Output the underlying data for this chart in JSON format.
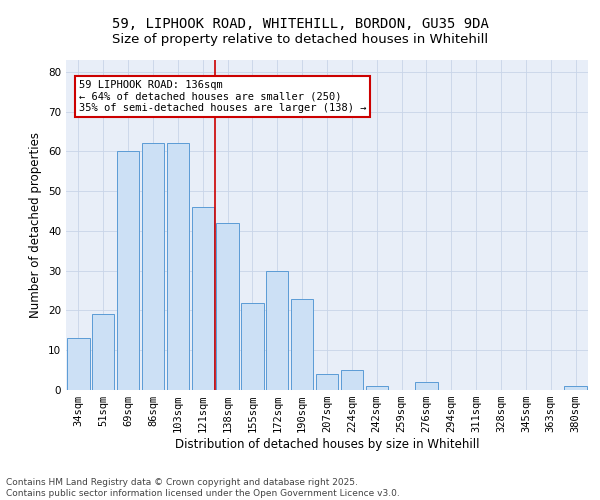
{
  "title_line1": "59, LIPHOOK ROAD, WHITEHILL, BORDON, GU35 9DA",
  "title_line2": "Size of property relative to detached houses in Whitehill",
  "xlabel": "Distribution of detached houses by size in Whitehill",
  "ylabel": "Number of detached properties",
  "categories": [
    "34sqm",
    "51sqm",
    "69sqm",
    "86sqm",
    "103sqm",
    "121sqm",
    "138sqm",
    "155sqm",
    "172sqm",
    "190sqm",
    "207sqm",
    "224sqm",
    "242sqm",
    "259sqm",
    "276sqm",
    "294sqm",
    "311sqm",
    "328sqm",
    "345sqm",
    "363sqm",
    "380sqm"
  ],
  "values": [
    13,
    19,
    60,
    62,
    62,
    46,
    42,
    22,
    30,
    23,
    4,
    5,
    1,
    0,
    2,
    0,
    0,
    0,
    0,
    0,
    1
  ],
  "bar_face_color": "#cce0f5",
  "bar_edge_color": "#5b9bd5",
  "highlight_index": 6,
  "highlight_line_color": "#cc0000",
  "annotation_text": "59 LIPHOOK ROAD: 136sqm\n← 64% of detached houses are smaller (250)\n35% of semi-detached houses are larger (138) →",
  "annotation_box_color": "#ffffff",
  "annotation_box_edge_color": "#cc0000",
  "ylim": [
    0,
    83
  ],
  "yticks": [
    0,
    10,
    20,
    30,
    40,
    50,
    60,
    70,
    80
  ],
  "grid_color": "#c8d4e8",
  "background_color": "#e8eef8",
  "footer_text": "Contains HM Land Registry data © Crown copyright and database right 2025.\nContains public sector information licensed under the Open Government Licence v3.0.",
  "title_fontsize": 10,
  "subtitle_fontsize": 9.5,
  "axis_label_fontsize": 8.5,
  "tick_fontsize": 7.5,
  "annotation_fontsize": 7.5,
  "footer_fontsize": 6.5
}
